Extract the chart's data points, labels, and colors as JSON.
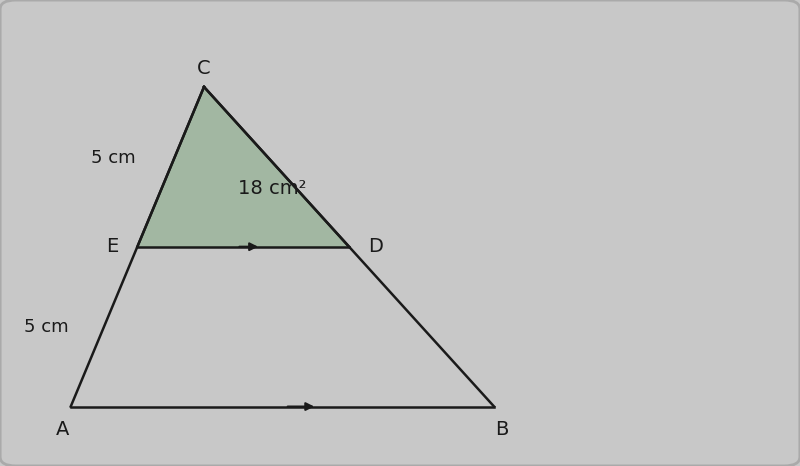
{
  "background_color": "#c8c8c8",
  "figsize": [
    8.0,
    4.66
  ],
  "dpi": 100,
  "A": [
    0.08,
    0.12
  ],
  "B": [
    0.62,
    0.12
  ],
  "C": [
    0.25,
    0.82
  ],
  "E": [
    0.165,
    0.47
  ],
  "D": [
    0.435,
    0.47
  ],
  "shaded_color": "#92b092",
  "shaded_alpha": 0.7,
  "line_color": "#1a1a1a",
  "line_width": 1.8,
  "label_C": "C",
  "label_A": "A",
  "label_B": "B",
  "label_E": "E",
  "label_D": "D",
  "label_5cm_top": "5 cm",
  "label_5cm_left": "5 cm",
  "label_area": "18 cm²",
  "font_size_labels": 14,
  "font_size_area": 14,
  "font_size_cm": 13,
  "xlim": [
    0.0,
    1.0
  ],
  "ylim": [
    0.0,
    1.0
  ]
}
